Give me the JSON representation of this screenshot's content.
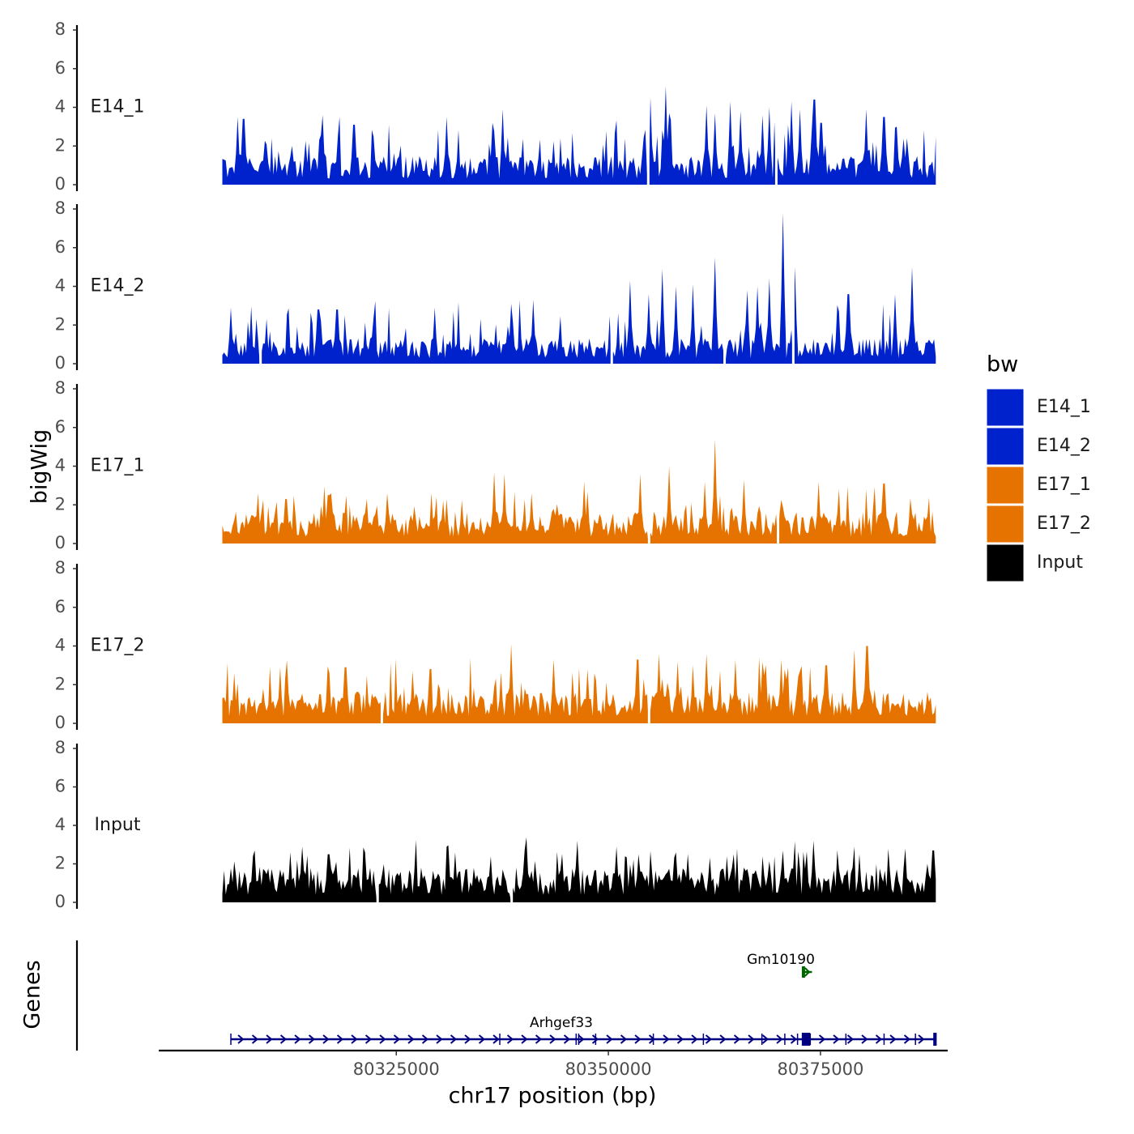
{
  "chart_data": {
    "type": "area",
    "title": "",
    "xlabel": "chr17 position (bp)",
    "ylabel": "bigWig",
    "genes_ylabel": "Genes",
    "xlim": [
      80297000,
      80390000
    ],
    "x_data_range": [
      80304500,
      80388600
    ],
    "ylim": [
      0,
      8
    ],
    "yticks": [
      0,
      2,
      4,
      6,
      8
    ],
    "xticks": [
      {
        "value": 80325000,
        "label": "80325000"
      },
      {
        "value": 80350000,
        "label": "80350000"
      },
      {
        "value": 80375000,
        "label": "80375000"
      }
    ],
    "legend": {
      "title": "bw",
      "position": "right"
    },
    "series": [
      {
        "name": "E14_1",
        "color": "#0022CC",
        "baseline": 0.9,
        "variation": 0.8,
        "gaps": [
          80354700,
          80369800
        ],
        "peaks": [
          [
            80306300,
            3.5
          ],
          [
            80307000,
            3.4
          ],
          [
            80316300,
            3.6
          ],
          [
            80320000,
            3.1
          ],
          [
            80330900,
            3.5
          ],
          [
            80336400,
            3.2
          ],
          [
            80337500,
            3.9
          ],
          [
            80355000,
            4.5
          ],
          [
            80356700,
            5.1
          ],
          [
            80357100,
            3.7
          ],
          [
            80361500,
            4.1
          ],
          [
            80362500,
            3.7
          ],
          [
            80364400,
            4.3
          ],
          [
            80365500,
            3.8
          ],
          [
            80368200,
            3.6
          ],
          [
            80369000,
            4.0
          ],
          [
            80371500,
            4.3
          ],
          [
            80372600,
            3.9
          ],
          [
            80374300,
            4.4
          ],
          [
            80375100,
            3.2
          ],
          [
            80380400,
            3.9
          ],
          [
            80382500,
            3.5
          ],
          [
            80384000,
            3.0
          ]
        ]
      },
      {
        "name": "E14_2",
        "color": "#0022CC",
        "baseline": 0.8,
        "variation": 0.8,
        "gaps": [
          80309000,
          80350400,
          80363700,
          80371800
        ],
        "peaks": [
          [
            80305500,
            2.9
          ],
          [
            80315800,
            2.8
          ],
          [
            80318000,
            2.8
          ],
          [
            80329500,
            2.9
          ],
          [
            80338500,
            3.1
          ],
          [
            80341200,
            3.3
          ],
          [
            80352600,
            4.3
          ],
          [
            80354700,
            3.6
          ],
          [
            80356400,
            4.9
          ],
          [
            80358000,
            4.0
          ],
          [
            80360000,
            4.1
          ],
          [
            80362500,
            5.5
          ],
          [
            80366300,
            3.8
          ],
          [
            80367600,
            4.0
          ],
          [
            80369000,
            4.4
          ],
          [
            80370500,
            7.8
          ],
          [
            80372000,
            5.0
          ],
          [
            80378300,
            3.6
          ],
          [
            80383800,
            3.6
          ],
          [
            80385800,
            5.0
          ]
        ]
      },
      {
        "name": "E17_1",
        "color": "#E67300",
        "baseline": 1.0,
        "variation": 0.6,
        "gaps": [
          80354800,
          80370000
        ],
        "peaks": [
          [
            80312000,
            2.3
          ],
          [
            80317000,
            2.5
          ],
          [
            80321500,
            2.3
          ],
          [
            80324000,
            2.6
          ],
          [
            80331000,
            2.3
          ],
          [
            80336600,
            3.7
          ],
          [
            80337800,
            3.6
          ],
          [
            80341000,
            2.6
          ],
          [
            80347200,
            3.2
          ],
          [
            80353800,
            3.6
          ],
          [
            80357200,
            4.0
          ],
          [
            80361400,
            3.2
          ],
          [
            80362500,
            5.4
          ],
          [
            80366000,
            3.3
          ],
          [
            80370000,
            3.4
          ],
          [
            80374800,
            3.2
          ],
          [
            80382500,
            3.1
          ]
        ]
      },
      {
        "name": "E17_2",
        "color": "#E67300",
        "baseline": 1.0,
        "variation": 0.8,
        "gaps": [
          80323300,
          80354800
        ],
        "peaks": [
          [
            80305900,
            2.6
          ],
          [
            80311300,
            2.9
          ],
          [
            80319000,
            2.9
          ],
          [
            80327000,
            2.7
          ],
          [
            80329000,
            2.8
          ],
          [
            80337300,
            2.6
          ],
          [
            80338600,
            4.1
          ],
          [
            80347500,
            2.8
          ],
          [
            80353400,
            3.3
          ],
          [
            80356000,
            3.6
          ],
          [
            80358200,
            3.2
          ],
          [
            80360000,
            3.0
          ],
          [
            80361600,
            3.6
          ],
          [
            80365000,
            3.3
          ],
          [
            80370300,
            3.3
          ],
          [
            80375700,
            3.0
          ],
          [
            80379000,
            3.8
          ],
          [
            80380500,
            4.0
          ]
        ]
      },
      {
        "name": "Input",
        "color": "#000000",
        "baseline": 1.1,
        "variation": 0.7,
        "gaps": [
          80322800,
          80338600
        ],
        "peaks": [
          [
            80308200,
            2.4
          ],
          [
            80312500,
            2.6
          ],
          [
            80317000,
            2.5
          ],
          [
            80321300,
            2.6
          ],
          [
            80332000,
            2.6
          ],
          [
            80346400,
            3.2
          ],
          [
            80350900,
            2.9
          ],
          [
            80353600,
            2.5
          ],
          [
            80358000,
            2.6
          ],
          [
            80364000,
            2.4
          ],
          [
            80370500,
            2.7
          ],
          [
            80379600,
            2.5
          ],
          [
            80385000,
            2.8
          ],
          [
            80388300,
            2.7
          ]
        ]
      }
    ],
    "genes": [
      {
        "name": "Arhgef33",
        "color": "#000080",
        "strand": "+",
        "start": 80305500,
        "end": 80388600,
        "exons": [
          80337200,
          80346200,
          80346500,
          80348500,
          80355300,
          80361200,
          80368100,
          80370800,
          80372300,
          80373800,
          80378000,
          80382500,
          80386200
        ],
        "utr_blocks": [
          [
            80372800,
            80373800
          ],
          [
            80388300,
            80388700
          ]
        ]
      },
      {
        "name": "Gm10190",
        "color": "#006400",
        "strand": "+",
        "start": 80372900,
        "end": 80374000
      }
    ]
  }
}
